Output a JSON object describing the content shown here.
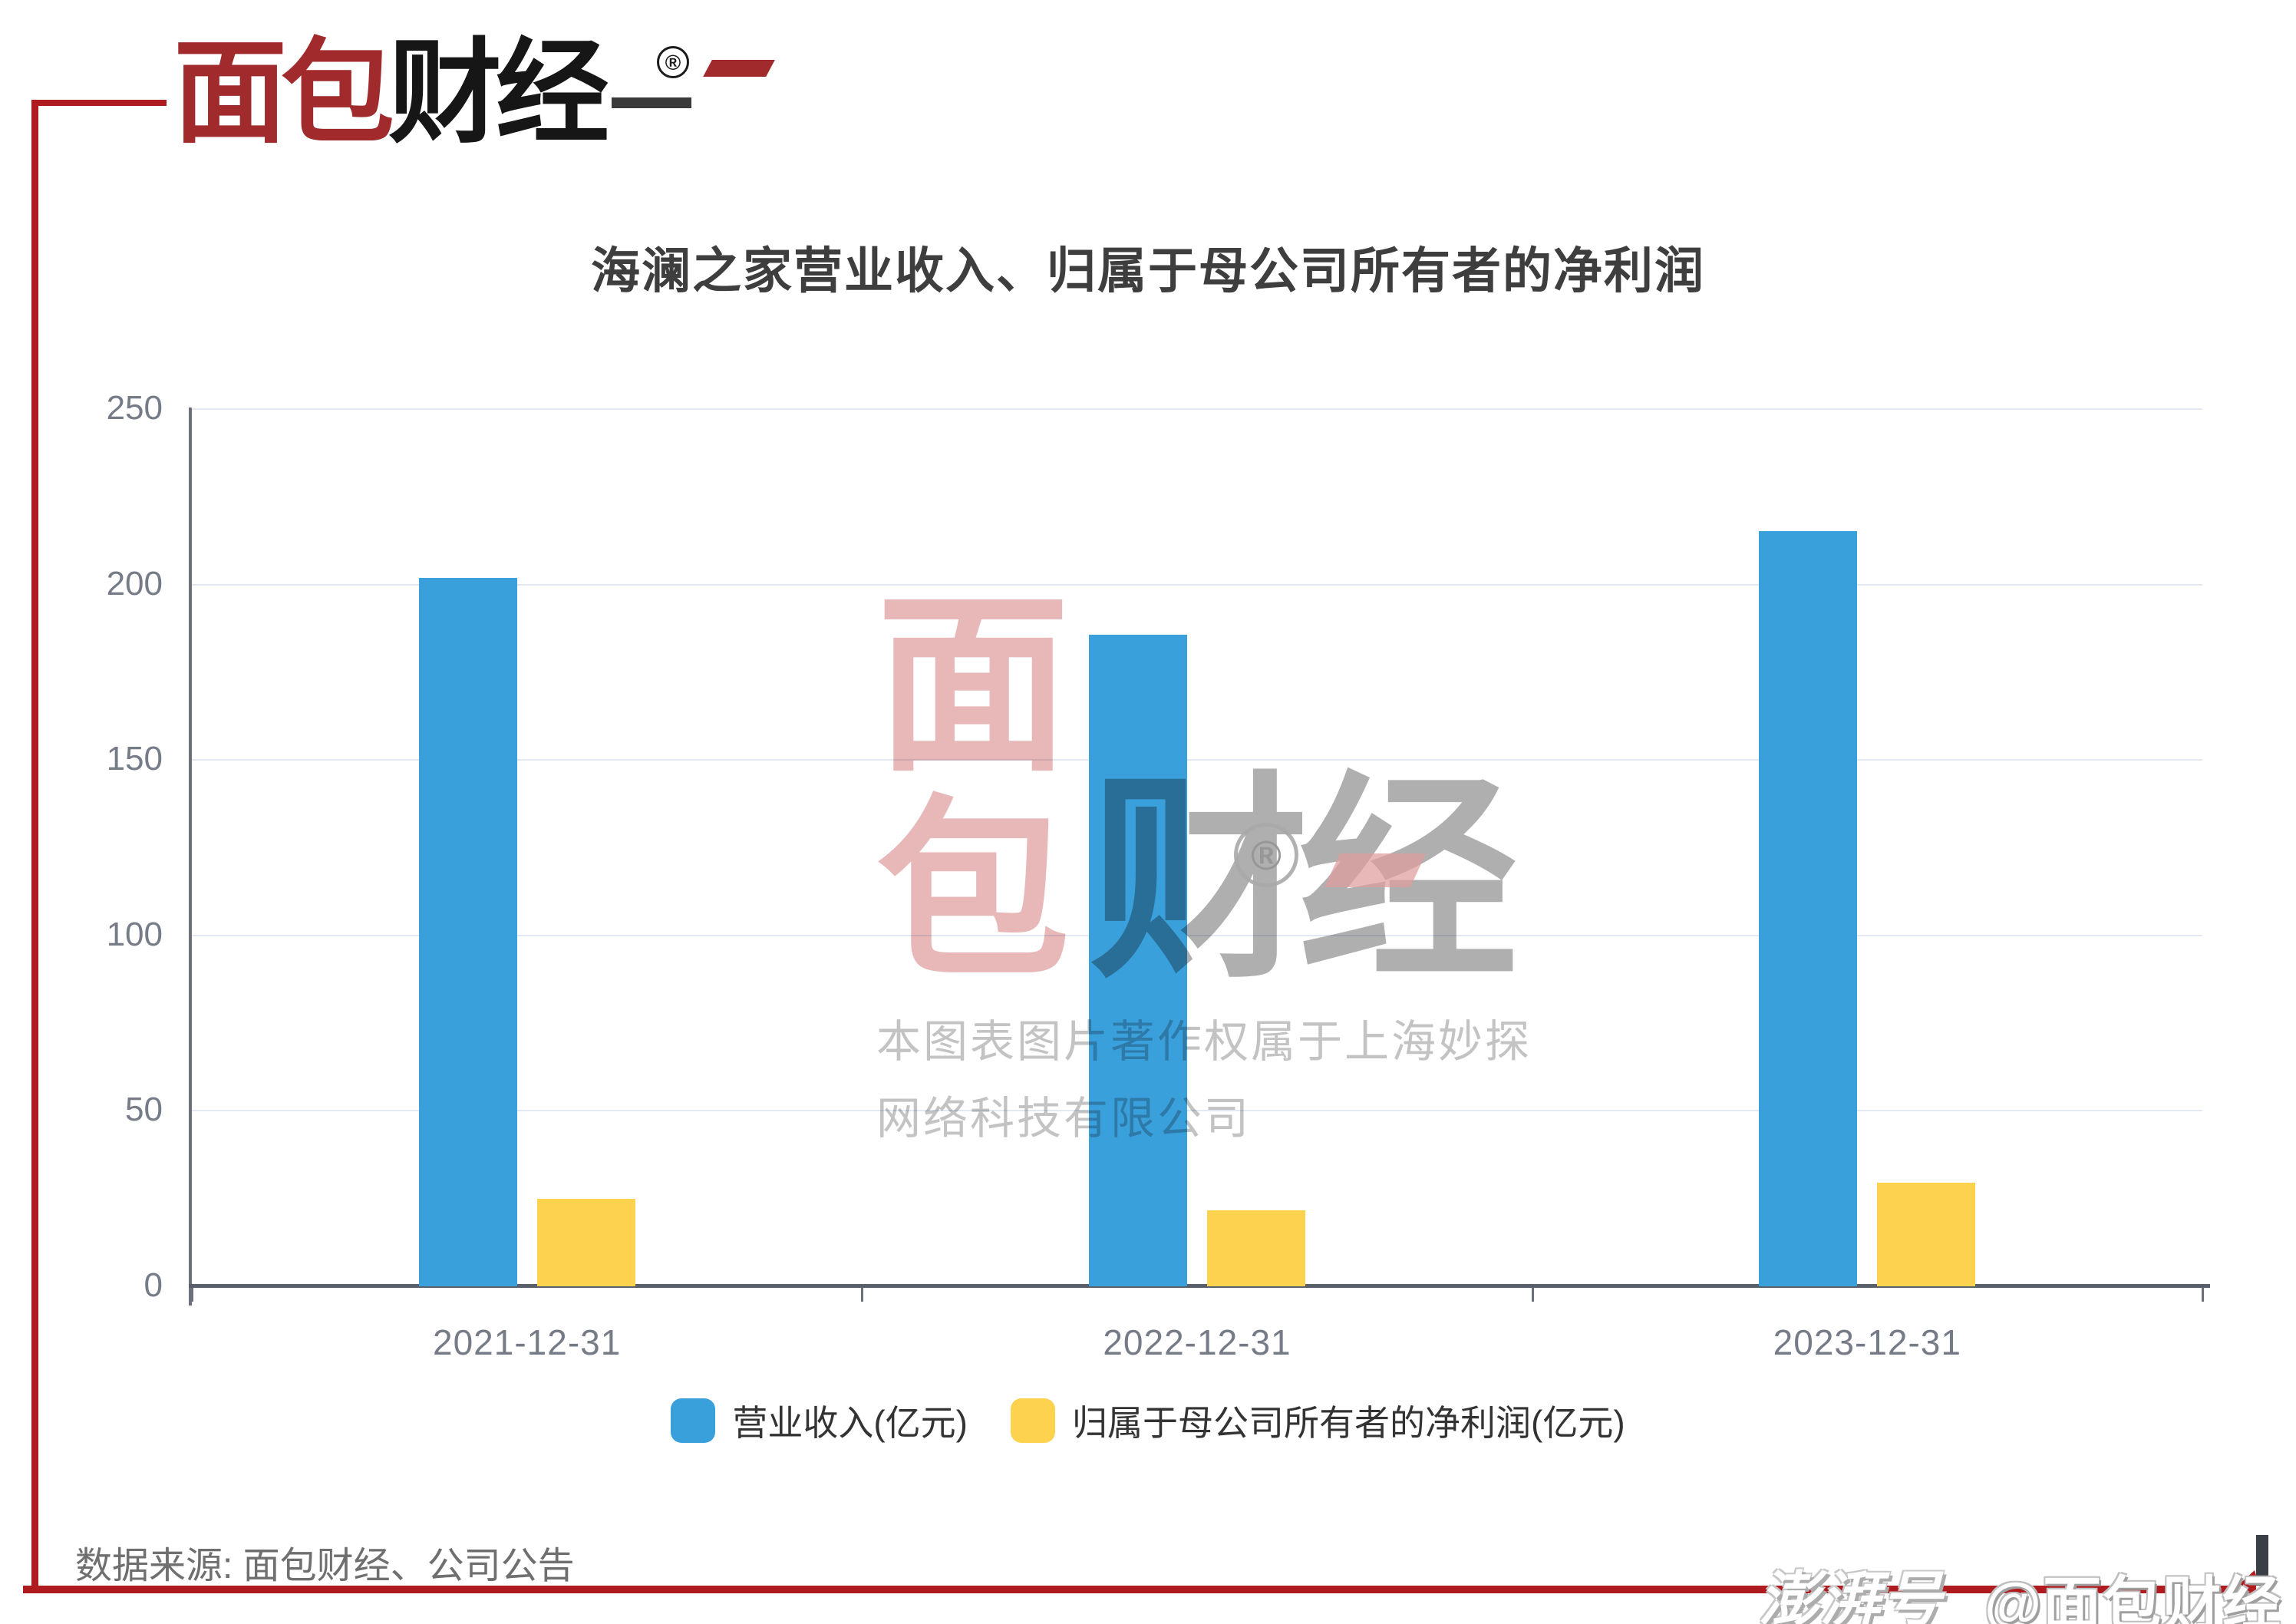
{
  "brand": {
    "logo_red": "面包",
    "logo_black": "财经",
    "registered": "®"
  },
  "chart_data": {
    "type": "bar",
    "title": "海澜之家营业收入、归属于母公司所有者的净利润",
    "categories": [
      "2021-12-31",
      "2022-12-31",
      "2023-12-31"
    ],
    "series": [
      {
        "id": "revenue",
        "name": "营业收入(亿元)",
        "color": "#3AA0DC",
        "values": [
          201.9,
          185.6,
          215.3
        ]
      },
      {
        "id": "net-profit",
        "name": "归属于母公司所有者的净利润(亿元)",
        "color": "#FCD24E",
        "values": [
          24.9,
          21.6,
          29.5
        ]
      }
    ],
    "ylim": [
      0,
      250
    ],
    "yticks": [
      250,
      200,
      150,
      100,
      50,
      0
    ],
    "grid": true,
    "legend_position": "bottom"
  },
  "watermark": {
    "logo_top": "面",
    "logo_bottom": "包",
    "logo_right": "财经",
    "registered": "®",
    "line1": "本图表图片著作权属于上海妙探",
    "line2": "网络科技有限公司"
  },
  "footer": {
    "source": "数据来源: 面包财经、公司公告"
  },
  "platform": {
    "name": "澎湃号",
    "account": "@面包财经"
  },
  "colors": {
    "bar_blue": "#3AA0DC",
    "bar_yellow": "#FCD24E",
    "brand_red": "#A02A2C",
    "frame_red": "#B01B20",
    "axis": "#6E7079",
    "grid": "#E3E9F2"
  }
}
